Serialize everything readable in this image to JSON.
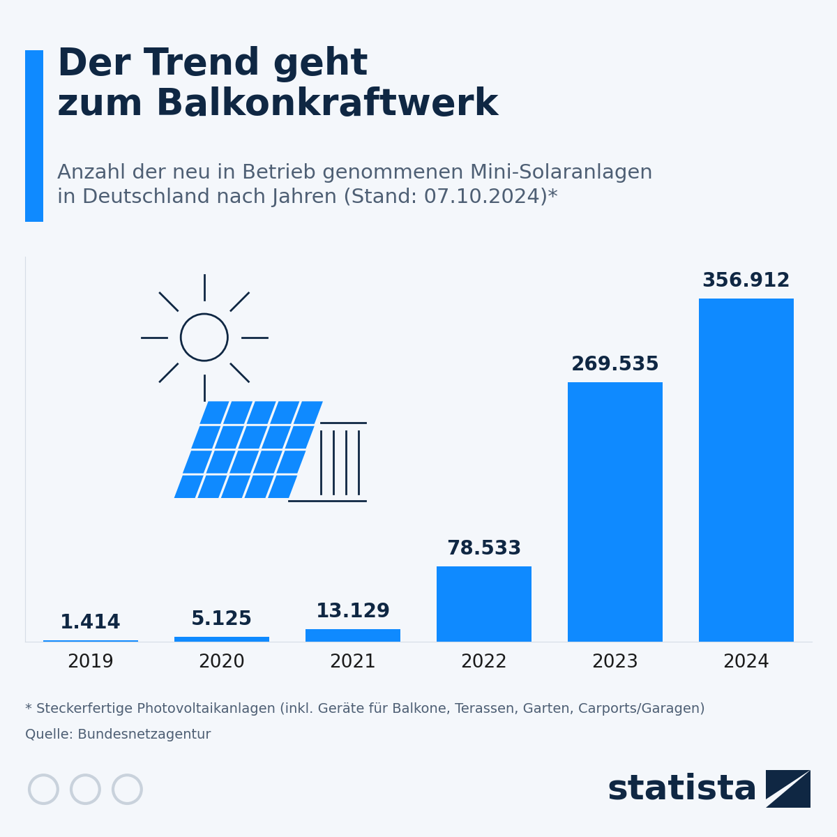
{
  "chart_data": {
    "type": "bar",
    "title": "Der Trend geht\nzum Balkonkraftwerk",
    "subtitle": "Anzahl der neu in Betrieb genommenen Mini-Solaranlagen\nin Deutschland nach Jahren (Stand: 07.10.2024)*",
    "categories": [
      "2019",
      "2020",
      "2021",
      "2022",
      "2023",
      "2024"
    ],
    "values": [
      1414,
      5125,
      13129,
      78533,
      269535,
      356912
    ],
    "value_labels": [
      "1.414",
      "5.125",
      "13.129",
      "78.533",
      "269.535",
      "356.912"
    ],
    "data_labels": true,
    "color": "#0f8aff",
    "ylim": [
      0,
      400000
    ],
    "tick_labels": "x",
    "grid": false,
    "annotations": [
      "* Steckerfertige Photovoltaikanlagen (inkl. Geräte für Balkone, Terassen, Garten, Carports/Garagen)",
      "Quelle: Bundesnetzagentur",
      "statista"
    ]
  }
}
